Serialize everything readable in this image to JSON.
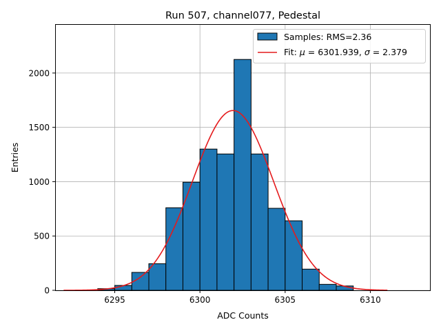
{
  "chart_data": {
    "type": "bar",
    "title": "Run 507, channel077, Pedestal",
    "xlabel": "ADC Counts",
    "ylabel": "Entries",
    "xlim": [
      6291.5,
      6313.5
    ],
    "ylim": [
      0,
      2450
    ],
    "xticks": [
      6295,
      6300,
      6305,
      6310
    ],
    "yticks": [
      0,
      500,
      1000,
      1500,
      2000
    ],
    "grid": true,
    "legend_position": "top-right",
    "colors": {
      "bar_fill": "#1f77b4",
      "bar_edge": "#000000",
      "fit_line": "#e41a1c",
      "grid": "#b0b0b0"
    },
    "histogram": {
      "name": "Samples: RMS=2.36",
      "bin_width": 1,
      "bin_left_edges": [
        6294,
        6295,
        6296,
        6297,
        6298,
        6299,
        6300,
        6301,
        6302,
        6303,
        6304,
        6305,
        6306,
        6307,
        6308
      ],
      "counts": [
        15,
        45,
        165,
        245,
        760,
        995,
        1300,
        1255,
        2125,
        1255,
        755,
        640,
        195,
        55,
        40
      ]
    },
    "fit": {
      "name": "Fit: μ = 6301.939, σ = 2.379",
      "legend_prefix": "Fit: ",
      "legend_mu_symbol": "μ",
      "legend_mu_text": " = 6301.939, ",
      "legend_sigma_symbol": "σ",
      "legend_sigma_text": " = 2.379",
      "mu": 6301.939,
      "sigma": 2.379,
      "amplitude": 1655,
      "x_range": [
        6292,
        6311
      ]
    }
  }
}
